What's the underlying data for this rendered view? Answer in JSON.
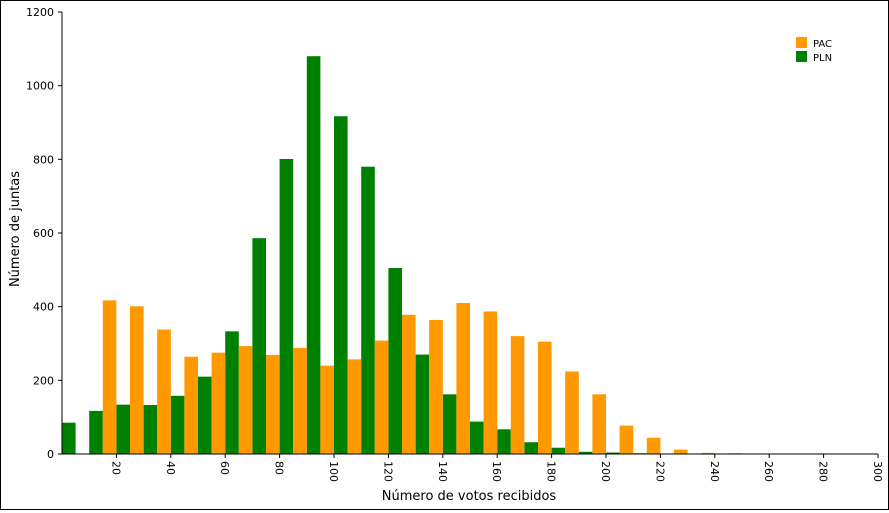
{
  "chart_data": {
    "type": "bar",
    "title": "",
    "xlabel": "Número de votos recibidos",
    "ylabel": "Número de juntas",
    "bin_width": 10,
    "xlim": [
      0,
      300
    ],
    "ylim": [
      0,
      1200
    ],
    "x_ticks": [
      20,
      40,
      60,
      80,
      100,
      120,
      140,
      160,
      180,
      200,
      220,
      240,
      260,
      280,
      300
    ],
    "y_ticks": [
      0,
      200,
      400,
      600,
      800,
      1000,
      1200
    ],
    "bin_starts": [
      0,
      10,
      20,
      30,
      40,
      50,
      60,
      70,
      80,
      90,
      100,
      110,
      120,
      130,
      140,
      150,
      160,
      170,
      180,
      190,
      200,
      210,
      220,
      230,
      240,
      250,
      260,
      270,
      280,
      290
    ],
    "series": [
      {
        "name": "PAC",
        "color": "#ff9900",
        "values": [
          0,
          417,
          401,
          338,
          264,
          275,
          293,
          269,
          288,
          240,
          257,
          308,
          378,
          364,
          410,
          387,
          320,
          305,
          224,
          162,
          77,
          44,
          12,
          3,
          2,
          1,
          1,
          0,
          0,
          0
        ]
      },
      {
        "name": "PLN",
        "color": "#008000",
        "values": [
          85,
          117,
          134,
          133,
          158,
          210,
          333,
          586,
          801,
          1080,
          917,
          780,
          505,
          270,
          162,
          88,
          67,
          32,
          17,
          6,
          4,
          2,
          1,
          1,
          1,
          0,
          0,
          0,
          0,
          0
        ]
      }
    ],
    "legend": {
      "placement": "top-right"
    },
    "grid": false
  }
}
